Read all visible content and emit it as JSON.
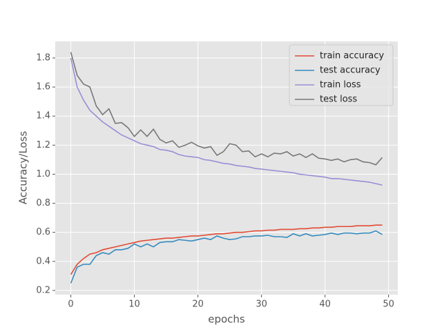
{
  "chart_data": {
    "type": "line",
    "x_label": "epochs",
    "y_label": "Accuracy/Loss",
    "x": [
      0,
      1,
      2,
      3,
      4,
      5,
      6,
      7,
      8,
      9,
      10,
      11,
      12,
      13,
      14,
      15,
      16,
      17,
      18,
      19,
      20,
      21,
      22,
      23,
      24,
      25,
      26,
      27,
      28,
      29,
      30,
      31,
      32,
      33,
      34,
      35,
      36,
      37,
      38,
      39,
      40,
      41,
      42,
      43,
      44,
      45,
      46,
      47,
      48,
      49
    ],
    "series": [
      {
        "name": "train accuracy",
        "color": "#E24A33",
        "values": [
          0.31,
          0.38,
          0.42,
          0.45,
          0.46,
          0.48,
          0.49,
          0.5,
          0.51,
          0.52,
          0.53,
          0.54,
          0.545,
          0.55,
          0.555,
          0.56,
          0.56,
          0.565,
          0.57,
          0.575,
          0.575,
          0.58,
          0.585,
          0.59,
          0.59,
          0.595,
          0.6,
          0.6,
          0.605,
          0.61,
          0.61,
          0.615,
          0.615,
          0.62,
          0.62,
          0.62,
          0.625,
          0.625,
          0.63,
          0.63,
          0.635,
          0.635,
          0.64,
          0.64,
          0.64,
          0.645,
          0.645,
          0.645,
          0.65,
          0.65
        ]
      },
      {
        "name": "test accuracy",
        "color": "#348ABD",
        "values": [
          0.25,
          0.36,
          0.38,
          0.38,
          0.44,
          0.46,
          0.45,
          0.48,
          0.48,
          0.49,
          0.52,
          0.5,
          0.52,
          0.5,
          0.53,
          0.535,
          0.535,
          0.55,
          0.545,
          0.54,
          0.55,
          0.56,
          0.55,
          0.575,
          0.56,
          0.55,
          0.555,
          0.57,
          0.57,
          0.575,
          0.575,
          0.58,
          0.57,
          0.57,
          0.565,
          0.59,
          0.575,
          0.59,
          0.575,
          0.58,
          0.585,
          0.595,
          0.585,
          0.595,
          0.595,
          0.59,
          0.595,
          0.595,
          0.61,
          0.585
        ]
      },
      {
        "name": "train loss",
        "color": "#988ED5",
        "values": [
          1.8,
          1.6,
          1.51,
          1.44,
          1.4,
          1.36,
          1.33,
          1.3,
          1.27,
          1.25,
          1.23,
          1.21,
          1.2,
          1.19,
          1.17,
          1.165,
          1.155,
          1.135,
          1.125,
          1.12,
          1.115,
          1.1,
          1.095,
          1.085,
          1.075,
          1.07,
          1.06,
          1.055,
          1.05,
          1.04,
          1.035,
          1.03,
          1.025,
          1.02,
          1.015,
          1.01,
          1.0,
          0.995,
          0.99,
          0.985,
          0.98,
          0.97,
          0.97,
          0.965,
          0.96,
          0.955,
          0.95,
          0.945,
          0.935,
          0.925
        ]
      },
      {
        "name": "test loss",
        "color": "#777777",
        "values": [
          1.84,
          1.68,
          1.62,
          1.6,
          1.47,
          1.41,
          1.45,
          1.35,
          1.355,
          1.32,
          1.26,
          1.305,
          1.26,
          1.31,
          1.24,
          1.215,
          1.23,
          1.185,
          1.2,
          1.22,
          1.195,
          1.18,
          1.19,
          1.13,
          1.155,
          1.21,
          1.2,
          1.155,
          1.16,
          1.12,
          1.14,
          1.12,
          1.145,
          1.14,
          1.155,
          1.125,
          1.14,
          1.115,
          1.14,
          1.11,
          1.105,
          1.095,
          1.105,
          1.085,
          1.1,
          1.105,
          1.085,
          1.08,
          1.065,
          1.115
        ]
      }
    ],
    "xlim": [
      -2.45,
      51.45
    ],
    "ylim": [
      0.171,
      1.914
    ],
    "xticks": [
      0,
      10,
      20,
      30,
      40,
      50
    ],
    "yticks": [
      0.2,
      0.4,
      0.6,
      0.8,
      {
        "value": 1,
        "label": "1.0"
      },
      1.2,
      1.4,
      1.6,
      1.8
    ],
    "grid": true,
    "legend": "upper right"
  }
}
